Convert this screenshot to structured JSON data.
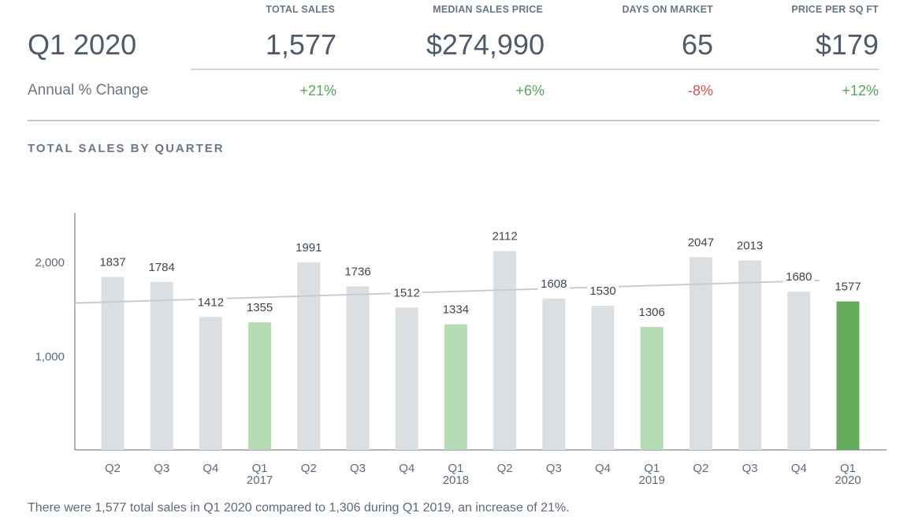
{
  "header": {
    "period": "Q1 2020",
    "change_label": "Annual % Change",
    "columns": [
      {
        "label": "TOTAL SALES",
        "value": "1,577",
        "change": "+21%",
        "change_color": "#5aa65a"
      },
      {
        "label": "MEDIAN SALES PRICE",
        "value": "$274,990",
        "change": "+6%",
        "change_color": "#5aa65a"
      },
      {
        "label": "DAYS ON MARKET",
        "value": "65",
        "change": "-8%",
        "change_color": "#d9534f"
      },
      {
        "label": "PRICE PER SQ FT",
        "value": "$179",
        "change": "+12%",
        "change_color": "#5aa65a"
      }
    ]
  },
  "chart_title": "TOTAL SALES BY QUARTER",
  "chart_data": {
    "type": "bar",
    "categories": [
      "Q2",
      "Q3",
      "Q4",
      "Q1",
      "Q2",
      "Q3",
      "Q4",
      "Q1",
      "Q2",
      "Q3",
      "Q4",
      "Q1",
      "Q2",
      "Q3",
      "Q4",
      "Q1"
    ],
    "year_labels": [
      "",
      "",
      "",
      "2017",
      "",
      "",
      "",
      "2018",
      "",
      "",
      "",
      "2019",
      "",
      "",
      "",
      "2020"
    ],
    "values": [
      1837,
      1784,
      1412,
      1355,
      1991,
      1736,
      1512,
      1334,
      2112,
      1608,
      1530,
      1306,
      2047,
      2013,
      1680,
      1577
    ],
    "bar_colors": [
      "#dcdfe2",
      "#dcdfe2",
      "#dcdfe2",
      "#b5dcb4",
      "#dcdfe2",
      "#dcdfe2",
      "#dcdfe2",
      "#b5dcb4",
      "#dcdfe2",
      "#dcdfe2",
      "#dcdfe2",
      "#b5dcb4",
      "#dcdfe2",
      "#dcdfe2",
      "#dcdfe2",
      "#64ab5c"
    ],
    "y_ticks": [
      1000,
      2000
    ],
    "y_tick_labels": [
      "1,000",
      "2,000"
    ],
    "ylim": [
      0,
      2500
    ],
    "trendline": {
      "start": 1560,
      "end": 1800,
      "color": "#c8ccd0"
    },
    "grid": false
  },
  "caption": "There were 1,577 total sales in Q1 2020 compared to 1,306 during Q1 2019, an increase of 21%."
}
